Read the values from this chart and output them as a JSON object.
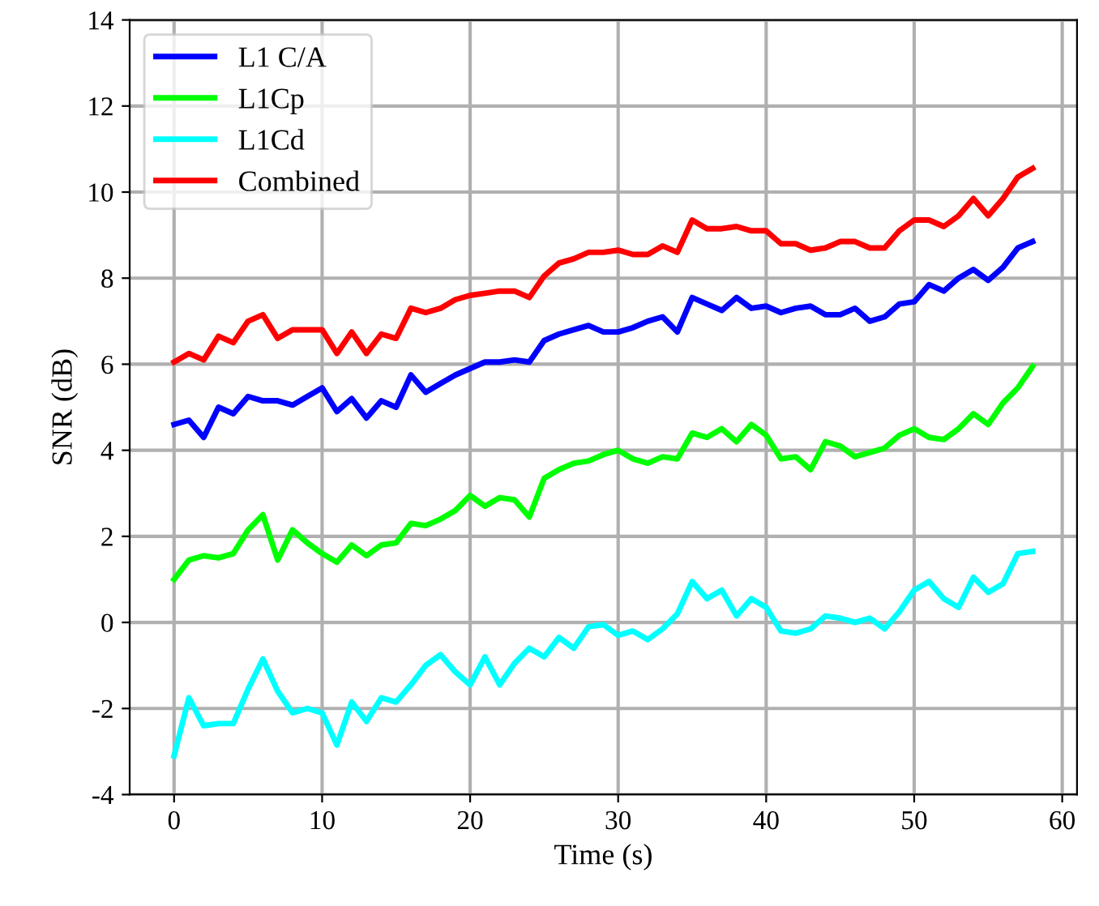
{
  "chart_data": {
    "type": "line",
    "xlabel": "Time (s)",
    "ylabel": "SNR (dB)",
    "xlim": [
      -3,
      61
    ],
    "ylim": [
      -4,
      14
    ],
    "xticks": [
      0,
      10,
      20,
      30,
      40,
      50,
      60
    ],
    "yticks": [
      -4,
      -2,
      0,
      2,
      4,
      6,
      8,
      10,
      12,
      14
    ],
    "grid": true,
    "legend": "top left",
    "x": [
      0,
      1,
      2,
      3,
      4,
      5,
      6,
      7,
      8,
      9,
      10,
      11,
      12,
      13,
      14,
      15,
      16,
      17,
      18,
      19,
      20,
      21,
      22,
      23,
      24,
      25,
      26,
      27,
      28,
      29,
      30,
      31,
      32,
      33,
      34,
      35,
      36,
      37,
      38,
      39,
      40,
      41,
      42,
      43,
      44,
      45,
      46,
      47,
      48,
      49,
      50,
      51,
      52,
      53,
      54,
      55,
      56,
      57,
      58
    ],
    "series": [
      {
        "name": "L1 C/A",
        "color": "#0000ff",
        "values": [
          4.6,
          4.7,
          4.3,
          5.0,
          4.85,
          5.25,
          5.15,
          5.15,
          5.05,
          5.25,
          5.45,
          4.9,
          5.2,
          4.75,
          5.15,
          5.0,
          5.75,
          5.35,
          5.55,
          5.75,
          5.9,
          6.05,
          6.05,
          6.1,
          6.05,
          6.55,
          6.7,
          6.8,
          6.9,
          6.75,
          6.75,
          6.85,
          7.0,
          7.1,
          6.75,
          7.55,
          7.4,
          7.25,
          7.55,
          7.3,
          7.35,
          7.2,
          7.3,
          7.35,
          7.15,
          7.15,
          7.3,
          7.0,
          7.1,
          7.4,
          7.45,
          7.85,
          7.7,
          8.0,
          8.2,
          7.95,
          8.25,
          8.7,
          8.85
        ]
      },
      {
        "name": "L1Cp",
        "color": "#00ff00",
        "values": [
          1.0,
          1.45,
          1.55,
          1.5,
          1.6,
          2.15,
          2.5,
          1.45,
          2.15,
          1.85,
          1.6,
          1.4,
          1.8,
          1.55,
          1.8,
          1.85,
          2.3,
          2.25,
          2.4,
          2.6,
          2.95,
          2.7,
          2.9,
          2.85,
          2.45,
          3.35,
          3.55,
          3.7,
          3.75,
          3.9,
          4.0,
          3.8,
          3.7,
          3.85,
          3.8,
          4.4,
          4.3,
          4.5,
          4.2,
          4.6,
          4.35,
          3.8,
          3.85,
          3.55,
          4.2,
          4.1,
          3.85,
          3.95,
          4.05,
          4.35,
          4.5,
          4.3,
          4.25,
          4.5,
          4.85,
          4.6,
          5.1,
          5.45,
          5.95
        ]
      },
      {
        "name": "L1Cd",
        "color": "#00ffff",
        "values": [
          -3.1,
          -1.75,
          -2.4,
          -2.35,
          -2.35,
          -1.55,
          -0.85,
          -1.6,
          -2.1,
          -2.0,
          -2.1,
          -2.85,
          -1.85,
          -2.3,
          -1.75,
          -1.85,
          -1.45,
          -1.0,
          -0.75,
          -1.15,
          -1.45,
          -0.8,
          -1.45,
          -0.95,
          -0.6,
          -0.8,
          -0.35,
          -0.6,
          -0.1,
          -0.05,
          -0.3,
          -0.2,
          -0.4,
          -0.15,
          0.2,
          0.95,
          0.55,
          0.75,
          0.15,
          0.55,
          0.35,
          -0.2,
          -0.25,
          -0.15,
          0.15,
          0.1,
          0.0,
          0.1,
          -0.15,
          0.25,
          0.75,
          0.95,
          0.55,
          0.35,
          1.05,
          0.7,
          0.9,
          1.6,
          1.65
        ]
      },
      {
        "name": "Combined",
        "color": "#ff0000",
        "values": [
          6.05,
          6.25,
          6.1,
          6.65,
          6.5,
          7.0,
          7.15,
          6.6,
          6.8,
          6.8,
          6.8,
          6.25,
          6.75,
          6.25,
          6.7,
          6.6,
          7.3,
          7.2,
          7.3,
          7.5,
          7.6,
          7.65,
          7.7,
          7.7,
          7.55,
          8.05,
          8.35,
          8.45,
          8.6,
          8.6,
          8.65,
          8.55,
          8.55,
          8.75,
          8.6,
          9.35,
          9.15,
          9.15,
          9.2,
          9.1,
          9.1,
          8.8,
          8.8,
          8.65,
          8.7,
          8.85,
          8.85,
          8.7,
          8.7,
          9.1,
          9.35,
          9.35,
          9.2,
          9.45,
          9.85,
          9.45,
          9.85,
          10.35,
          10.55
        ]
      }
    ]
  }
}
